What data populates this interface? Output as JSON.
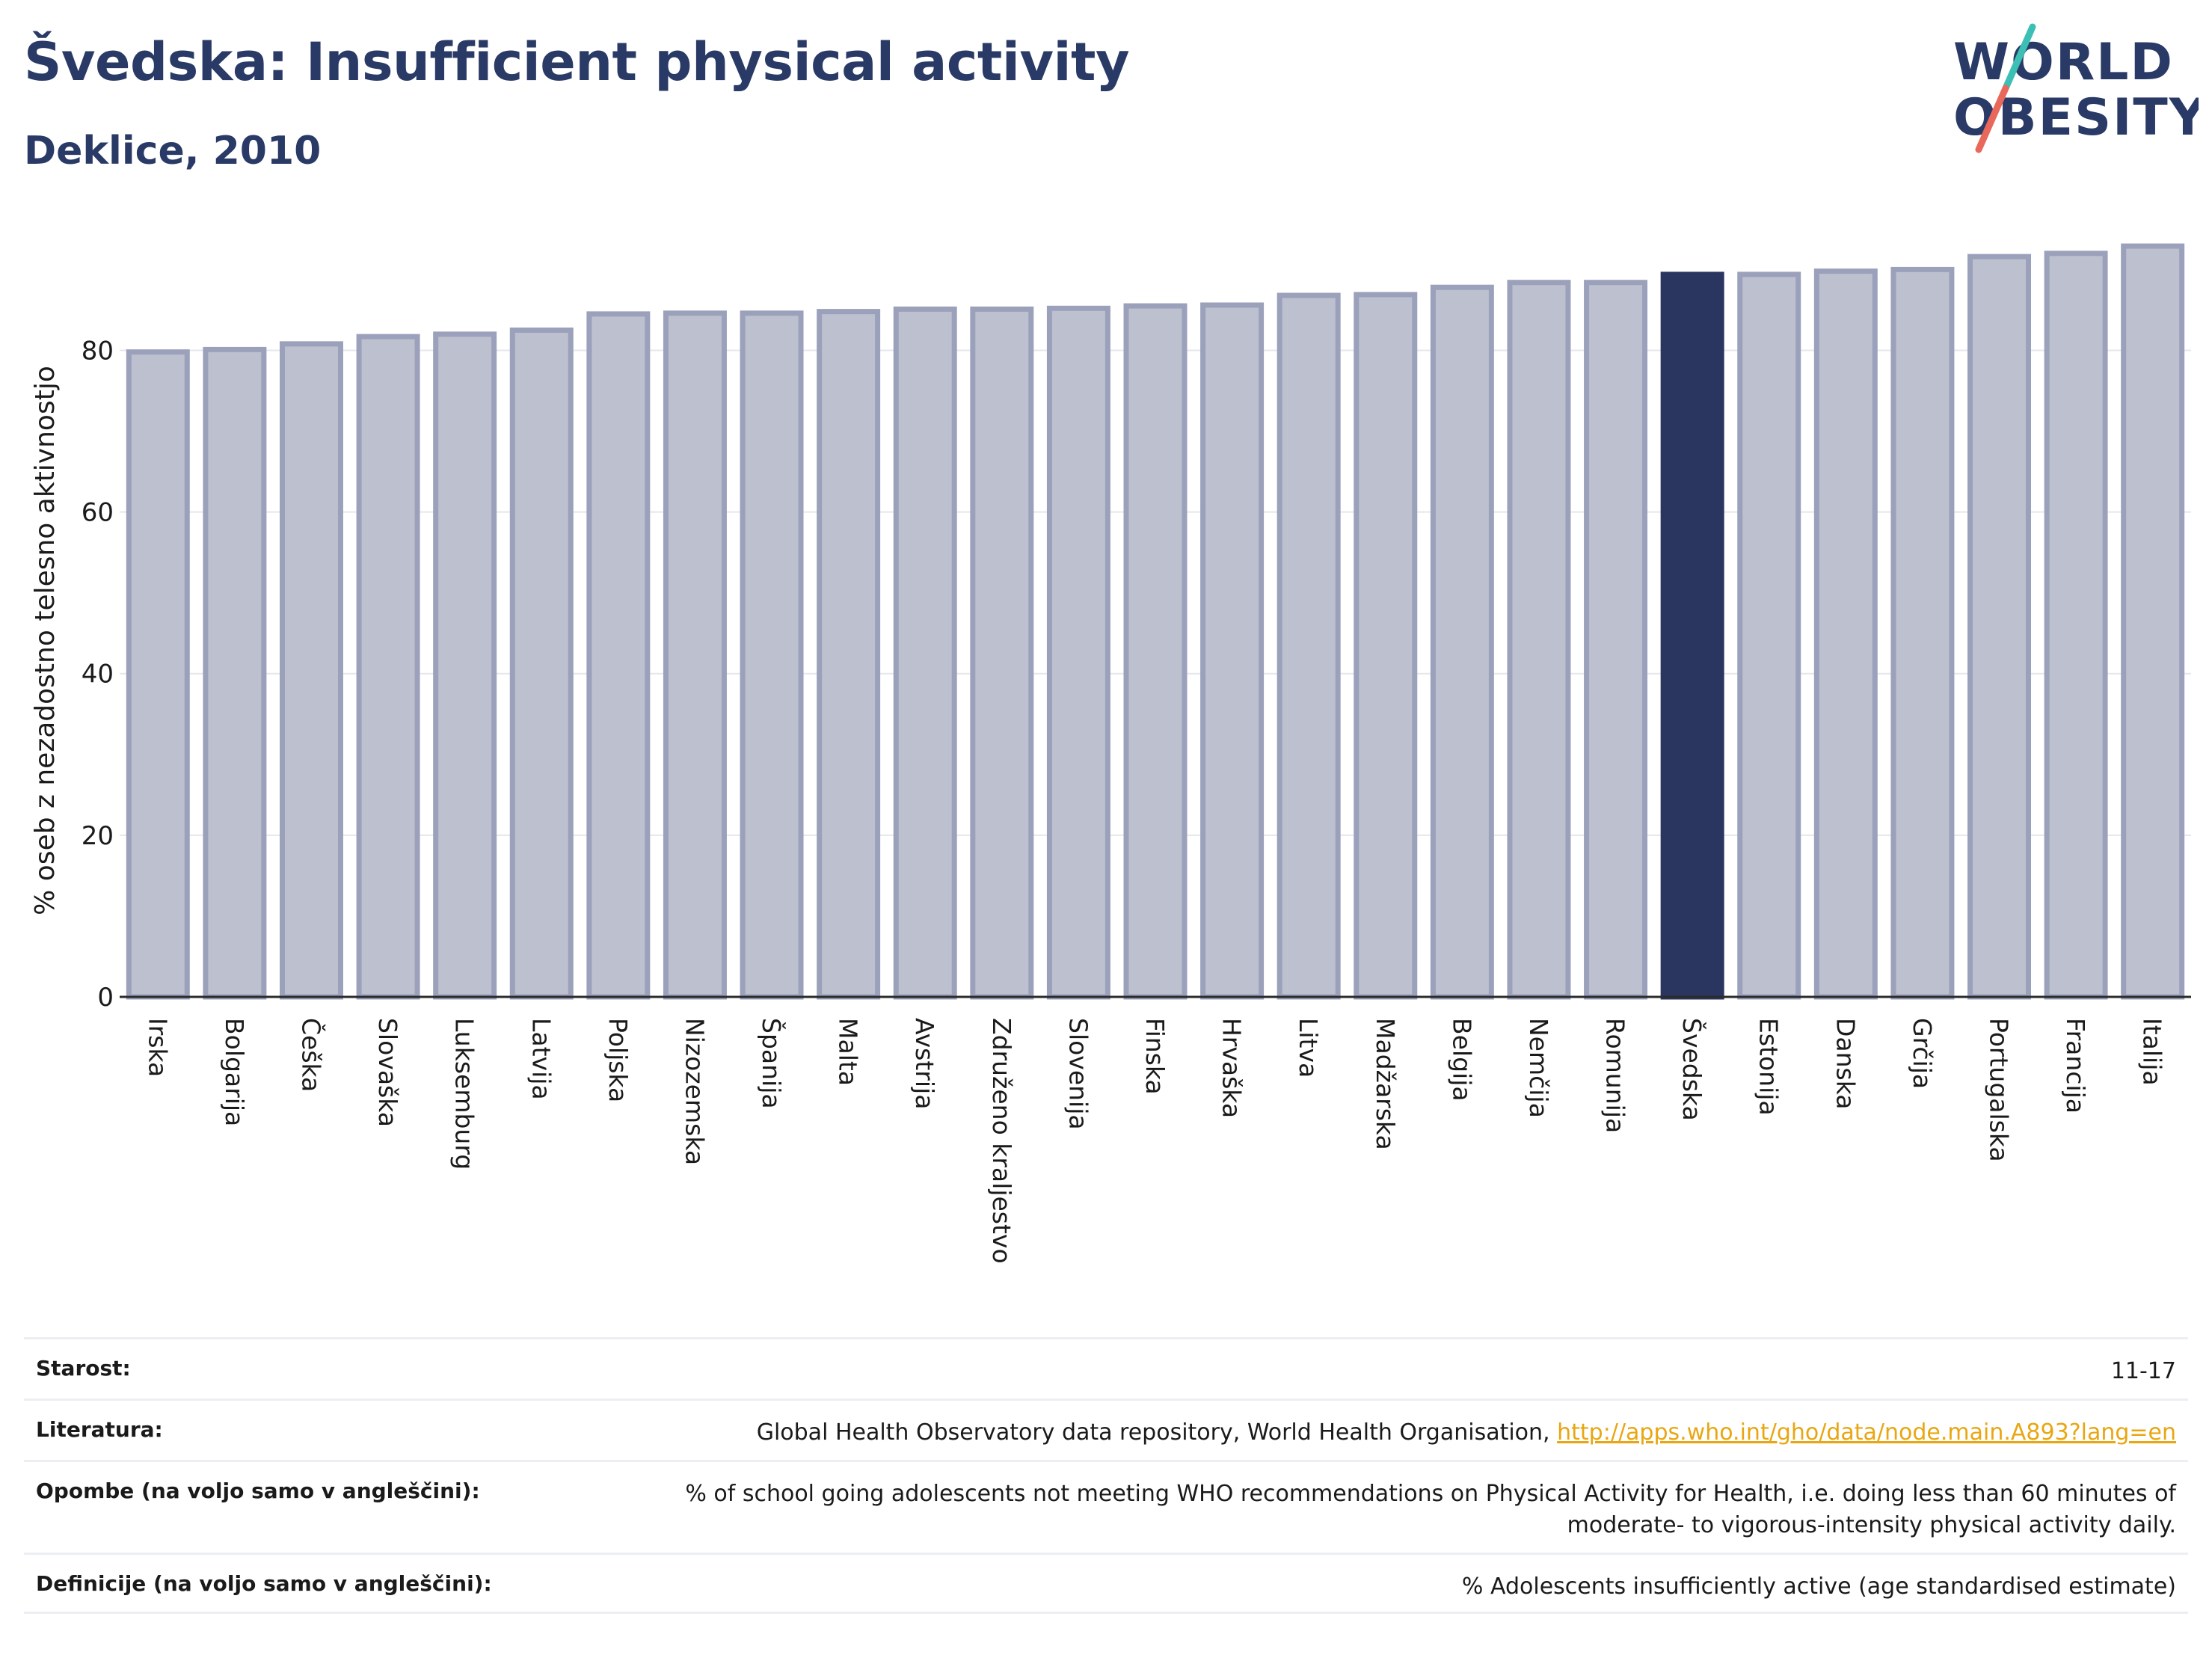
{
  "header": {
    "title": "Švedska: Insufficient physical activity",
    "subtitle": "Deklice, 2010"
  },
  "logo": {
    "line1": "WORLD",
    "line2": "OBESITY",
    "colors": {
      "text": "#2a3a66",
      "slash_teal": "#3cbfb4",
      "slash_red": "#e8695b"
    }
  },
  "chart_data": {
    "type": "bar",
    "title": "",
    "xlabel": "",
    "ylabel": "% oseb z nezadostno telesno aktivnostjo",
    "ylim": [
      0,
      93
    ],
    "yticks": [
      0,
      20,
      40,
      60,
      80
    ],
    "grid": true,
    "highlight": "Švedska",
    "colors": {
      "bar": "#bdc0cf",
      "bar_edge": "#9ba1bb",
      "highlight": "#2a3560"
    },
    "categories": [
      "Irska",
      "Bolgarija",
      "Češka",
      "Slovaška",
      "Luksemburg",
      "Latvija",
      "Poljska",
      "Nizozemska",
      "Španija",
      "Malta",
      "Avstrija",
      "Združeno kraljestvo",
      "Slovenija",
      "Finska",
      "Hrvaška",
      "Litva",
      "Madžarska",
      "Belgija",
      "Nemčija",
      "Romunija",
      "Švedska",
      "Estonija",
      "Danska",
      "Grčija",
      "Portugalska",
      "Francija",
      "Italija"
    ],
    "values": [
      79.8,
      80.1,
      80.8,
      81.7,
      82.0,
      82.5,
      84.5,
      84.6,
      84.6,
      84.8,
      85.1,
      85.1,
      85.2,
      85.5,
      85.6,
      86.8,
      86.9,
      87.8,
      88.4,
      88.4,
      89.4,
      89.4,
      89.8,
      90.0,
      91.6,
      92.0,
      92.9
    ]
  },
  "info": {
    "age": {
      "label": "Starost:",
      "value": "11-17"
    },
    "literature": {
      "label": "Literatura:",
      "text": "Global Health Observatory data repository, World Health Organisation,",
      "link": "http://apps.who.int/gho/data/node.main.A893?lang=en"
    },
    "notes": {
      "label": "Opombe (na voljo samo v angleščini):",
      "value": "% of school going adolescents not meeting WHO recommendations on Physical Activity for Health, i.e. doing less than 60 minutes of moderate- to vigorous-intensity physical activity daily."
    },
    "definitions": {
      "label": "Definicije (na voljo samo v angleščini):",
      "value": "% Adolescents insufficiently active (age standardised estimate)"
    }
  }
}
